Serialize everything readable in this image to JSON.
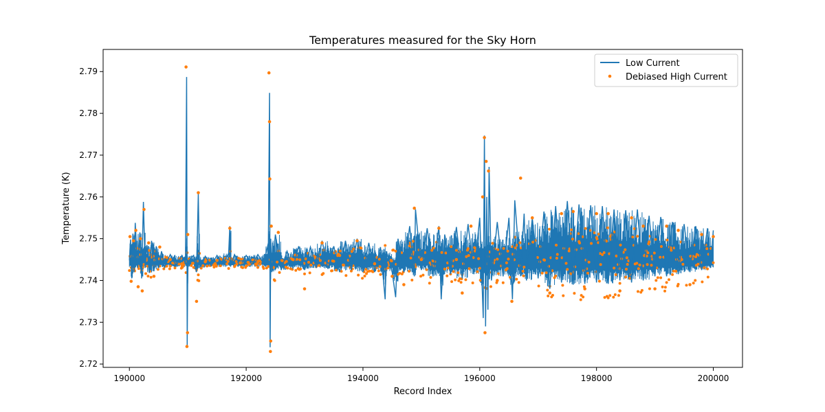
{
  "chart_data": {
    "type": "line",
    "title": "Temperatures measured for the Sky Horn",
    "xlabel": "Record Index",
    "ylabel": "Temperature (K)",
    "xlim": [
      189550,
      200500
    ],
    "ylim": [
      2.7192,
      2.7953
    ],
    "x_ticks": [
      190000,
      192000,
      194000,
      196000,
      198000,
      200000
    ],
    "x_tick_labels": [
      "190000",
      "192000",
      "194000",
      "196000",
      "198000",
      "200000"
    ],
    "y_ticks": [
      2.72,
      2.73,
      2.74,
      2.75,
      2.76,
      2.77,
      2.78,
      2.79
    ],
    "y_tick_labels": [
      "2.72",
      "2.73",
      "2.74",
      "2.75",
      "2.76",
      "2.77",
      "2.78",
      "2.79"
    ],
    "grid": false,
    "legend_position": "top-right",
    "series": [
      {
        "name": "Low Current",
        "style": "line",
        "color": "#1f77b4",
        "points": [
          [
            190000,
            2.7448
          ],
          [
            190020,
            2.7498
          ],
          [
            190040,
            2.7405
          ],
          [
            190060,
            2.7512
          ],
          [
            190080,
            2.742
          ],
          [
            190100,
            2.7538
          ],
          [
            190140,
            2.743
          ],
          [
            190180,
            2.7515
          ],
          [
            190210,
            2.7405
          ],
          [
            190240,
            2.7588
          ],
          [
            190270,
            2.743
          ],
          [
            190300,
            2.7485
          ],
          [
            190340,
            2.7418
          ],
          [
            190380,
            2.7495
          ],
          [
            190420,
            2.7422
          ],
          [
            190460,
            2.7482
          ],
          [
            190500,
            2.743
          ],
          [
            190550,
            2.747
          ],
          [
            190600,
            2.7432
          ],
          [
            190700,
            2.7462
          ],
          [
            190800,
            2.7435
          ],
          [
            190900,
            2.746
          ],
          [
            190960,
            2.744
          ],
          [
            190980,
            2.7887
          ],
          [
            190990,
            2.7242
          ],
          [
            191000,
            2.7445
          ],
          [
            191100,
            2.746
          ],
          [
            191150,
            2.742
          ],
          [
            191180,
            2.7607
          ],
          [
            191200,
            2.743
          ],
          [
            191300,
            2.7458
          ],
          [
            191400,
            2.7435
          ],
          [
            191500,
            2.746
          ],
          [
            191600,
            2.7438
          ],
          [
            191700,
            2.7465
          ],
          [
            191720,
            2.753
          ],
          [
            191740,
            2.7438
          ],
          [
            191800,
            2.7462
          ],
          [
            191900,
            2.7436
          ],
          [
            192000,
            2.746
          ],
          [
            192100,
            2.7438
          ],
          [
            192200,
            2.7462
          ],
          [
            192300,
            2.744
          ],
          [
            192380,
            2.749
          ],
          [
            192400,
            2.7849
          ],
          [
            192410,
            2.724
          ],
          [
            192420,
            2.75
          ],
          [
            192440,
            2.742
          ],
          [
            192500,
            2.751
          ],
          [
            192600,
            2.7425
          ],
          [
            192700,
            2.747
          ],
          [
            192800,
            2.743
          ],
          [
            192900,
            2.7482
          ],
          [
            193000,
            2.7425
          ],
          [
            193100,
            2.748
          ],
          [
            193200,
            2.743
          ],
          [
            193300,
            2.7495
          ],
          [
            193400,
            2.7428
          ],
          [
            193500,
            2.7482
          ],
          [
            193600,
            2.742
          ],
          [
            193700,
            2.7495
          ],
          [
            193800,
            2.7425
          ],
          [
            193900,
            2.75
          ],
          [
            194000,
            2.742
          ],
          [
            194100,
            2.749
          ],
          [
            194200,
            2.742
          ],
          [
            194300,
            2.748
          ],
          [
            194380,
            2.7355
          ],
          [
            194400,
            2.747
          ],
          [
            194500,
            2.742
          ],
          [
            194560,
            2.736
          ],
          [
            194600,
            2.75
          ],
          [
            194700,
            2.742
          ],
          [
            194800,
            2.753
          ],
          [
            194880,
            2.741
          ],
          [
            194900,
            2.757
          ],
          [
            195000,
            2.7425
          ],
          [
            195100,
            2.7525
          ],
          [
            195200,
            2.741
          ],
          [
            195300,
            2.753
          ],
          [
            195340,
            2.7355
          ],
          [
            195400,
            2.751
          ],
          [
            195500,
            2.7415
          ],
          [
            195600,
            2.7528
          ],
          [
            195700,
            2.7405
          ],
          [
            195800,
            2.7535
          ],
          [
            195900,
            2.7415
          ],
          [
            196000,
            2.755
          ],
          [
            196060,
            2.731
          ],
          [
            196080,
            2.7747
          ],
          [
            196100,
            2.729
          ],
          [
            196120,
            2.76
          ],
          [
            196140,
            2.733
          ],
          [
            196160,
            2.7672
          ],
          [
            196200,
            2.74
          ],
          [
            196300,
            2.754
          ],
          [
            196400,
            2.741
          ],
          [
            196500,
            2.755
          ],
          [
            196560,
            2.7355
          ],
          [
            196600,
            2.7592
          ],
          [
            196700,
            2.741
          ],
          [
            196760,
            2.756
          ],
          [
            196800,
            2.74
          ],
          [
            196900,
            2.755
          ],
          [
            197000,
            2.7405
          ],
          [
            197100,
            2.7565
          ],
          [
            197200,
            2.738
          ],
          [
            197300,
            2.7578
          ],
          [
            197400,
            2.7395
          ],
          [
            197500,
            2.759
          ],
          [
            197600,
            2.739
          ],
          [
            197700,
            2.7582
          ],
          [
            197800,
            2.7392
          ],
          [
            197900,
            2.758
          ],
          [
            198000,
            2.7395
          ],
          [
            198100,
            2.7578
          ],
          [
            198200,
            2.7392
          ],
          [
            198300,
            2.757
          ],
          [
            198400,
            2.74
          ],
          [
            198500,
            2.7568
          ],
          [
            198600,
            2.7395
          ],
          [
            198700,
            2.757
          ],
          [
            198800,
            2.74
          ],
          [
            198900,
            2.7555
          ],
          [
            199000,
            2.741
          ],
          [
            199100,
            2.7552
          ],
          [
            199200,
            2.741
          ],
          [
            199300,
            2.754
          ],
          [
            199400,
            2.7415
          ],
          [
            199500,
            2.7535
          ],
          [
            199600,
            2.742
          ],
          [
            199700,
            2.753
          ],
          [
            199800,
            2.7425
          ],
          [
            199900,
            2.7525
          ],
          [
            199950,
            2.743
          ],
          [
            200000,
            2.752
          ]
        ]
      },
      {
        "name": "Debiased High Current",
        "style": "scatter",
        "color": "#ff7f0e",
        "points": [
          [
            190010,
            2.7505
          ],
          [
            190030,
            2.7398
          ],
          [
            190070,
            2.7495
          ],
          [
            190110,
            2.752
          ],
          [
            190150,
            2.7385
          ],
          [
            190190,
            2.75
          ],
          [
            190220,
            2.7375
          ],
          [
            190250,
            2.757
          ],
          [
            190330,
            2.749
          ],
          [
            190420,
            2.741
          ],
          [
            190520,
            2.748
          ],
          [
            190700,
            2.745
          ],
          [
            190900,
            2.744
          ],
          [
            190970,
            2.7911
          ],
          [
            190985,
            2.7242
          ],
          [
            190995,
            2.7275
          ],
          [
            191000,
            2.751
          ],
          [
            191150,
            2.735
          ],
          [
            191180,
            2.761
          ],
          [
            191300,
            2.7445
          ],
          [
            191500,
            2.7448
          ],
          [
            191720,
            2.7525
          ],
          [
            191900,
            2.7442
          ],
          [
            192200,
            2.7445
          ],
          [
            192390,
            2.7897
          ],
          [
            192400,
            2.778
          ],
          [
            192405,
            2.7643
          ],
          [
            192415,
            2.723
          ],
          [
            192420,
            2.7255
          ],
          [
            192430,
            2.753
          ],
          [
            192550,
            2.7515
          ],
          [
            192800,
            2.745
          ],
          [
            193000,
            2.738
          ],
          [
            193300,
            2.749
          ],
          [
            193600,
            2.746
          ],
          [
            193900,
            2.7495
          ],
          [
            194200,
            2.744
          ],
          [
            194500,
            2.741
          ],
          [
            194700,
            2.739
          ],
          [
            194880,
            2.7573
          ],
          [
            195000,
            2.745
          ],
          [
            195300,
            2.7525
          ],
          [
            195600,
            2.745
          ],
          [
            195700,
            2.737
          ],
          [
            195850,
            2.753
          ],
          [
            196050,
            2.76
          ],
          [
            196080,
            2.7742
          ],
          [
            196090,
            2.7275
          ],
          [
            196110,
            2.7685
          ],
          [
            196150,
            2.7662
          ],
          [
            196300,
            2.74
          ],
          [
            196550,
            2.735
          ],
          [
            196700,
            2.7645
          ],
          [
            196900,
            2.755
          ],
          [
            197200,
            2.737
          ],
          [
            197400,
            2.756
          ],
          [
            197600,
            2.7565
          ],
          [
            197800,
            2.738
          ],
          [
            198000,
            2.756
          ],
          [
            198200,
            2.756
          ],
          [
            198400,
            2.7375
          ],
          [
            198600,
            2.755
          ],
          [
            198800,
            2.753
          ],
          [
            199000,
            2.738
          ],
          [
            199200,
            2.753
          ],
          [
            199400,
            2.752
          ],
          [
            199600,
            2.739
          ],
          [
            199800,
            2.751
          ],
          [
            200000,
            2.7505
          ]
        ]
      }
    ]
  }
}
